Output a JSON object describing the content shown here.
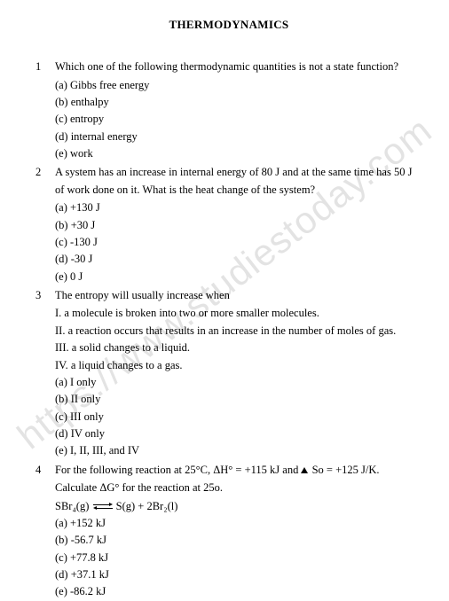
{
  "title": "THERMODYNAMICS",
  "watermark": "https://www.studiestoday.com",
  "questions": [
    {
      "num": "1",
      "text": "Which one of the following thermodynamic quantities is not a state function?",
      "statements": [],
      "options": [
        "(a) Gibbs free energy",
        "(b) enthalpy",
        "(c) entropy",
        "(d) internal energy",
        "(e) work"
      ]
    },
    {
      "num": "2",
      "text": "A system has an increase in internal energy of 80 J and at the same time has 50 J of work done on it. What is the heat change of the system?",
      "statements": [],
      "options": [
        "(a) +130 J",
        "(b) +30 J",
        "(c) -130 J",
        "(d) -30 J",
        "(e) 0 J"
      ]
    },
    {
      "num": "3",
      "text": "The entropy will usually increase when",
      "statements": [
        "I. a molecule is broken into two or more smaller molecules.",
        "II. a reaction occurs that results in an increase in the number of moles of gas.",
        "III. a solid changes to a liquid.",
        "IV. a liquid changes to a gas."
      ],
      "options": [
        "(a) I only",
        "(b) II only",
        "(c) III only",
        "(d) IV only",
        "(e) I, II, III, and IV"
      ]
    },
    {
      "num": "4",
      "text_pre": "For the following reaction at 25°C, ΔH° = +115 kJ and ",
      "text_post": " So = +125 J/K.",
      "text2": "Calculate ΔG° for the reaction at 25o.",
      "eq_l": "SBr₄(g) ",
      "eq_r": " S(g) + 2Br₂(l)",
      "statements": [],
      "options": [
        "(a) +152 kJ",
        "(b) -56.7 kJ",
        "(c) +77.8 kJ",
        "(d) +37.1 kJ",
        "(e) -86.2 kJ"
      ]
    }
  ]
}
